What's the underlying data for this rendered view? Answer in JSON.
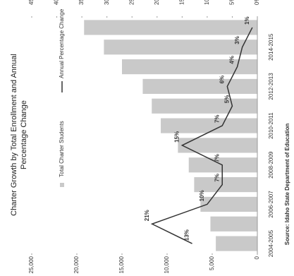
{
  "chart_data": {
    "type": "bar",
    "title": "Charter Growth by Total Enrollment and Annual",
    "subtitle": "Percentage Change",
    "source": "Source: Idaho State Department of Education",
    "categories": [
      "2004-2005",
      null,
      "2006-2007",
      null,
      "2008-2009",
      null,
      "2010-2011",
      null,
      "2012-2013",
      null,
      "2014-2015",
      null
    ],
    "series": [
      {
        "name": "Total Charter Students",
        "color": "#c9c9c9",
        "values": [
          4600,
          5200,
          6300,
          7000,
          7600,
          8800,
          10700,
          11700,
          12700,
          15000,
          17000,
          19200
        ]
      },
      {
        "name": "Annual Percentage Change",
        "color": "#333333",
        "axis": "y2",
        "values": [
          13,
          21,
          10,
          7,
          7,
          15,
          7,
          5,
          6,
          4,
          3,
          1
        ],
        "value_labels": [
          "13%",
          "21%",
          "10%",
          "7%",
          "7%",
          "15%",
          "7%",
          "5%",
          "6%",
          "4%",
          "3%",
          "1%"
        ]
      }
    ],
    "ylim": [
      0,
      25000
    ],
    "yticks": [
      0,
      {
        "value": 5000,
        "label": "5,000"
      },
      {
        "value": 10000,
        "label": "10,000"
      },
      {
        "value": 15000,
        "label": "15,000"
      },
      {
        "value": 20000,
        "label": "20,000"
      },
      {
        "value": 25000,
        "label": "25,000"
      }
    ],
    "y2lim": [
      0,
      45
    ],
    "y2ticks": [
      {
        "value": 0,
        "label": "0%"
      },
      {
        "value": 5,
        "label": "5%"
      },
      {
        "value": 10,
        "label": "10%"
      },
      {
        "value": 15,
        "label": "15%"
      },
      {
        "value": 20,
        "label": "20%"
      },
      {
        "value": 25,
        "label": "25%"
      },
      {
        "value": 30,
        "label": "30%"
      },
      {
        "value": 35,
        "label": "35%"
      },
      {
        "value": 40,
        "label": "40%"
      },
      {
        "value": 45,
        "label": "45%"
      }
    ]
  }
}
